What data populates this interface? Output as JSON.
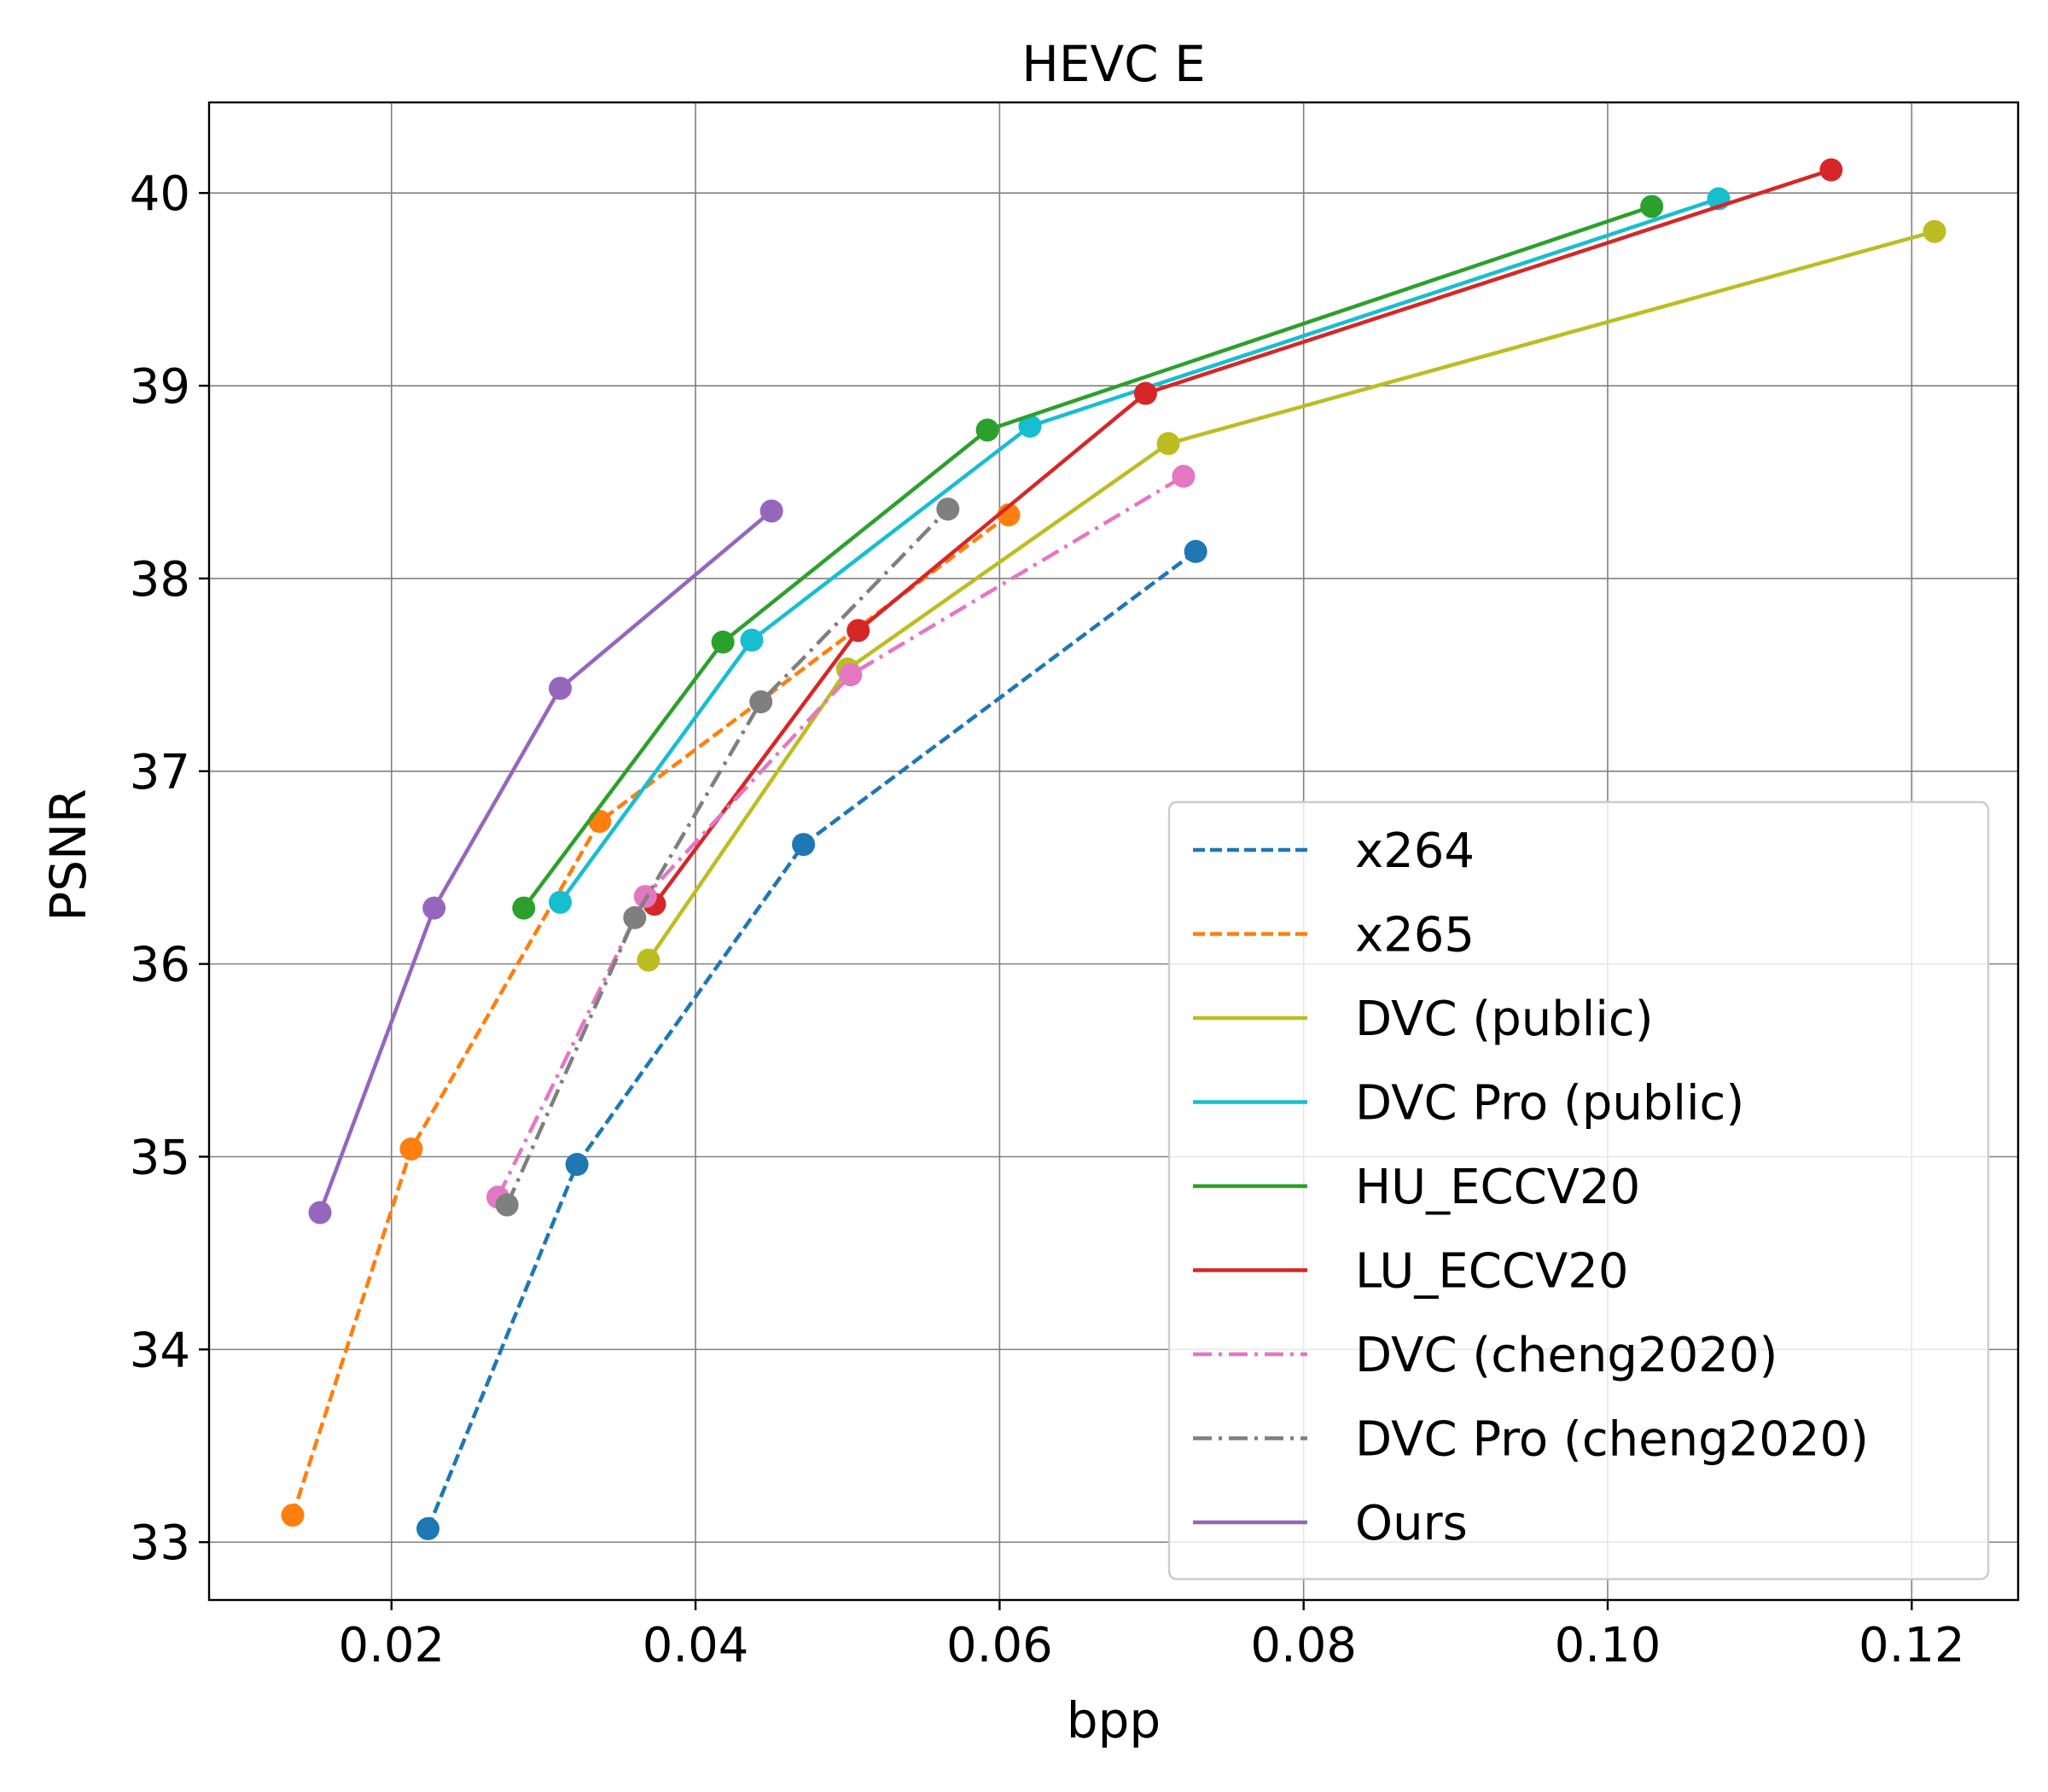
{
  "chart_data": {
    "type": "line",
    "title": "HEVC E",
    "xlabel": "bpp",
    "ylabel": "PSNR",
    "xlim": [
      0.008,
      0.127
    ],
    "ylim": [
      32.7,
      40.47
    ],
    "xticks": [
      0.02,
      0.04,
      0.06,
      0.08,
      0.1,
      0.12
    ],
    "xtick_labels": [
      "0.02",
      "0.04",
      "0.06",
      "0.08",
      "0.10",
      "0.12"
    ],
    "yticks": [
      33,
      34,
      35,
      36,
      37,
      38,
      39,
      40
    ],
    "ytick_labels": [
      "33",
      "34",
      "35",
      "36",
      "37",
      "38",
      "39",
      "40"
    ],
    "grid": true,
    "legend_position": "lower-right",
    "series": [
      {
        "name": "x264",
        "color": "#1f77b4",
        "dash": "dashed",
        "x": [
          0.0224,
          0.0322,
          0.0471,
          0.0729
        ],
        "y": [
          33.07,
          34.96,
          36.62,
          38.14
        ]
      },
      {
        "name": "x265",
        "color": "#ff7f0e",
        "dash": "dashed",
        "x": [
          0.0135,
          0.0213,
          0.0337,
          0.0606
        ],
        "y": [
          33.14,
          35.04,
          36.74,
          38.33
        ]
      },
      {
        "name": "DVC (public)",
        "color": "#bcbd22",
        "dash": "solid",
        "x": [
          0.0369,
          0.05,
          0.0711,
          0.1215
        ],
        "y": [
          36.02,
          37.53,
          38.7,
          39.8
        ]
      },
      {
        "name": "DVC Pro (public)",
        "color": "#17becf",
        "dash": "solid",
        "x": [
          0.0311,
          0.0437,
          0.062,
          0.1073
        ],
        "y": [
          36.32,
          37.68,
          38.79,
          39.97
        ]
      },
      {
        "name": "HU_ECCV20",
        "color": "#2ca02c",
        "dash": "solid",
        "x": [
          0.0287,
          0.0418,
          0.0592,
          0.1029
        ],
        "y": [
          36.29,
          37.67,
          38.77,
          39.93
        ]
      },
      {
        "name": "LU_ECCV20",
        "color": "#d62728",
        "dash": "solid",
        "x": [
          0.0373,
          0.0507,
          0.0696,
          0.1147
        ],
        "y": [
          36.31,
          37.73,
          38.96,
          40.12
        ]
      },
      {
        "name": "DVC (cheng2020)",
        "color": "#e377c2",
        "dash": "dashdot",
        "x": [
          0.027,
          0.0367,
          0.0502,
          0.0721
        ],
        "y": [
          34.79,
          36.35,
          37.5,
          38.53
        ]
      },
      {
        "name": "DVC Pro (cheng2020)",
        "color": "#7f7f7f",
        "dash": "dashdot",
        "x": [
          0.0276,
          0.036,
          0.0443,
          0.0566
        ],
        "y": [
          34.75,
          36.24,
          37.36,
          38.36
        ]
      },
      {
        "name": "Ours",
        "color": "#9467bd",
        "dash": "solid",
        "x": [
          0.0153,
          0.0228,
          0.0311,
          0.045
        ],
        "y": [
          34.71,
          36.29,
          37.43,
          38.35
        ]
      }
    ]
  }
}
